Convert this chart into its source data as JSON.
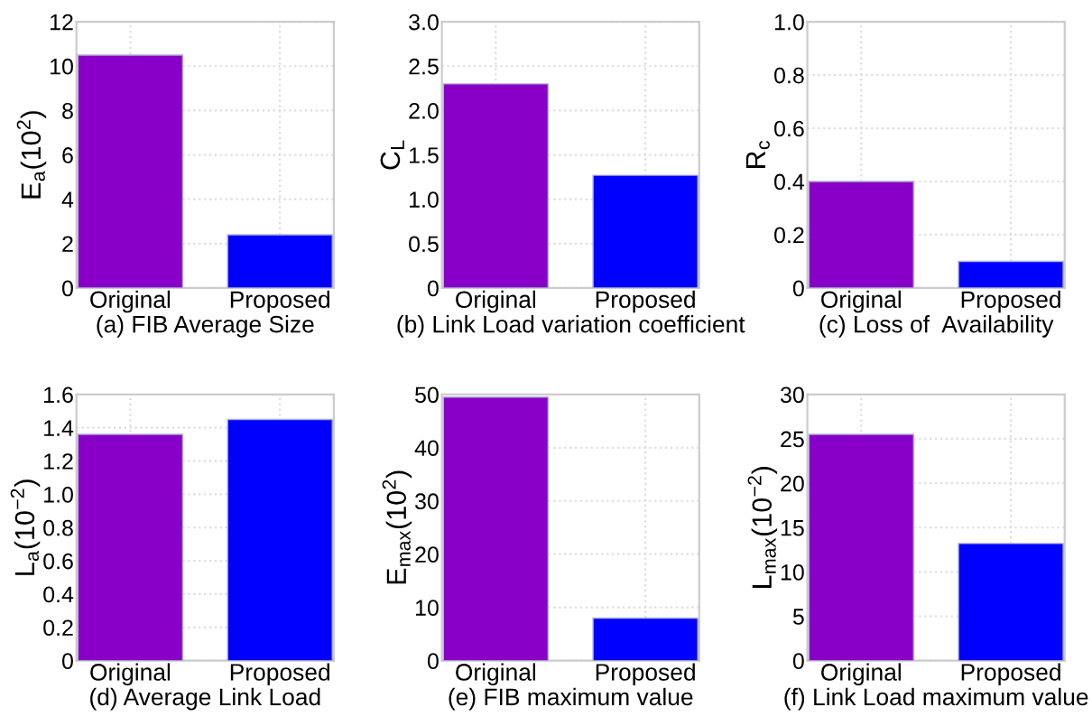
{
  "chart_data": [
    {
      "type": "bar",
      "xlabel": "(a) FIB Average Size",
      "ylabel": "E$_{a}$(10$^{2}$)",
      "categories": [
        "Original",
        "Proposed"
      ],
      "values": [
        10.5,
        2.4
      ],
      "colors": [
        "#8800c8",
        "#0000ff"
      ],
      "ylim": [
        0,
        12
      ],
      "yticks": [
        0,
        2,
        4,
        6,
        8,
        10,
        12
      ],
      "grid": true
    },
    {
      "type": "bar",
      "xlabel": "(b) Link Load variation coefficient",
      "ylabel": "C$_{L}$",
      "categories": [
        "Original",
        "Proposed"
      ],
      "values": [
        2.3,
        1.27
      ],
      "colors": [
        "#8800c8",
        "#0000ff"
      ],
      "ylim": [
        0,
        3
      ],
      "yticks": [
        0,
        0.5,
        {
          "value": 1,
          "label": "1.0"
        },
        1.5,
        {
          "value": 2,
          "label": "2.0"
        },
        2.5,
        {
          "value": 3,
          "label": "3.0"
        }
      ],
      "grid": true
    },
    {
      "type": "bar",
      "xlabel": "(c) Loss of  Availability",
      "ylabel": "R$_{c}$",
      "categories": [
        "Original",
        "Proposed"
      ],
      "values": [
        0.4,
        0.1
      ],
      "colors": [
        "#8800c8",
        "#0000ff"
      ],
      "ylim": [
        0,
        1
      ],
      "yticks": [
        0,
        0.2,
        0.4,
        0.6,
        0.8,
        {
          "value": 1,
          "label": "1.0"
        }
      ],
      "grid": true
    },
    {
      "type": "bar",
      "xlabel": "(d) Average Link Load",
      "ylabel": "L$_{a}$(10$^{−2}$)",
      "categories": [
        "Original",
        "Proposed"
      ],
      "values": [
        1.36,
        1.45
      ],
      "colors": [
        "#8800c8",
        "#0000ff"
      ],
      "ylim": [
        0,
        1.6
      ],
      "yticks": [
        0,
        0.2,
        0.4,
        0.6,
        0.8,
        {
          "value": 1,
          "label": "1.0"
        },
        1.2,
        1.4,
        1.6
      ],
      "grid": true
    },
    {
      "type": "bar",
      "xlabel": "(e) FIB maximum value",
      "ylabel": "E$_{max}$(10$^{2}$)",
      "categories": [
        "Original",
        "Proposed"
      ],
      "values": [
        49.5,
        8
      ],
      "colors": [
        "#8800c8",
        "#0000ff"
      ],
      "ylim": [
        0,
        50
      ],
      "yticks": [
        0,
        10,
        20,
        30,
        40,
        50
      ],
      "grid": true
    },
    {
      "type": "bar",
      "xlabel": "(f) Link Load maximum value",
      "ylabel": "L$_{max}$(10$^{−2}$)",
      "categories": [
        "Original",
        "Proposed"
      ],
      "values": [
        25.5,
        13.2
      ],
      "colors": [
        "#8800c8",
        "#0000ff"
      ],
      "ylim": [
        0,
        30
      ],
      "yticks": [
        0,
        5,
        10,
        15,
        20,
        25,
        30
      ],
      "grid": true
    }
  ]
}
